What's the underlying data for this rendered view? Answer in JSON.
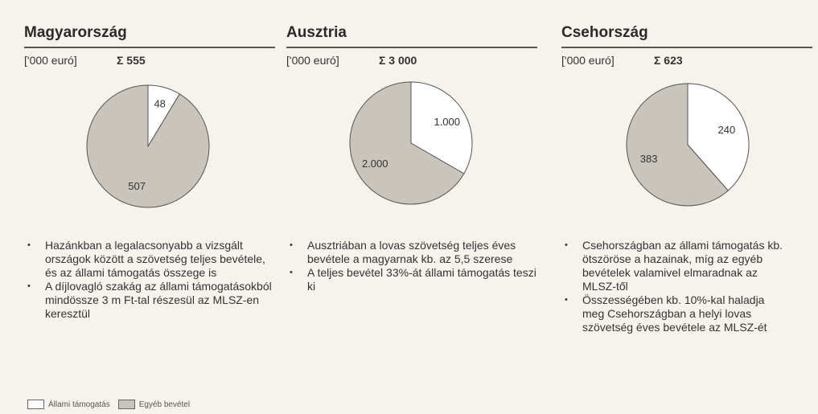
{
  "chart_data": [
    {
      "type": "pie",
      "title": "Magyarország",
      "unit_label": "['000 euró]",
      "total_label": "Σ 555",
      "values": [
        48,
        507
      ],
      "colors": [
        "#ffffff",
        "#c9c4bc"
      ],
      "notes": [
        "Hazánkban a legalacsonyabb a vizsgált országok között a szövetség teljes bevétele, és az állami támogatás összege is",
        "A díjlovagló szakág az állami támogatásokból mindössze 3 m Ft-tal részesül az MLSZ-en keresztül"
      ]
    },
    {
      "type": "pie",
      "title": "Ausztria",
      "unit_label": "['000 euró]",
      "total_label": "Σ 3 000",
      "values": [
        1000,
        2000
      ],
      "value_labels": [
        "1.000",
        "2.000"
      ],
      "colors": [
        "#ffffff",
        "#c9c4bc"
      ],
      "notes": [
        "Ausztriában a lovas szövetség teljes éves bevétele a magyarnak kb. az 5,5 szerese",
        "A teljes bevétel 33%-át állami támogatás teszi ki"
      ]
    },
    {
      "type": "pie",
      "title": "Csehország",
      "unit_label": "['000 euró]",
      "total_label": "Σ 623",
      "values": [
        240,
        383
      ],
      "colors": [
        "#ffffff",
        "#c9c4bc"
      ],
      "notes": [
        "Csehországban az állami támogatás kb. ötszöröse a hazainak, míg az egyéb bevételek valamivel elmaradnak az MLSZ-től",
        "Összességében kb. 10%-kal haladja meg Csehországban a helyi lovas szövetség éves bevétele az MLSZ-ét"
      ]
    }
  ],
  "legend": {
    "labels": [
      "Állami támogatás",
      "Egyéb bevétel"
    ],
    "colors": [
      "#ffffff",
      "#c9c4bc"
    ]
  }
}
